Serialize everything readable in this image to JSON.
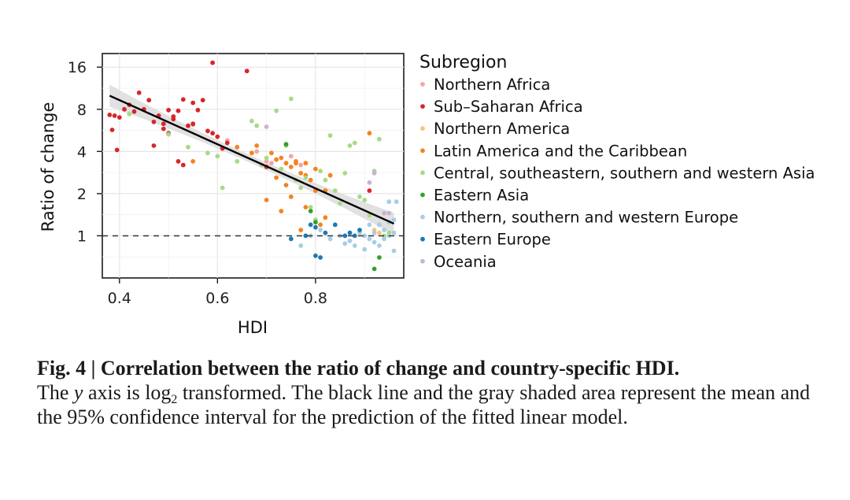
{
  "chart_data": {
    "type": "scatter",
    "xlabel": "HDI",
    "ylabel": "Ratio of change",
    "x_ticks": [
      0.4,
      0.6,
      0.8
    ],
    "y_ticks": [
      1,
      2,
      4,
      8,
      16
    ],
    "x_range": [
      0.365,
      0.98
    ],
    "y_range": [
      0.5,
      20
    ],
    "y_scale": "log2",
    "grid": true,
    "legend_title": "Subregion",
    "legend_position": "right",
    "reference_line": {
      "y": 1,
      "style": "dashed"
    },
    "fit_line": {
      "type": "linear",
      "from": {
        "x": 0.38,
        "y": 10
      },
      "to": {
        "x": 0.96,
        "y": 1.22
      },
      "confidence_band": "95%",
      "band_color": "#dcdcdc",
      "line_color": "#000000"
    },
    "series": [
      {
        "name": "Northern Africa",
        "color": "#f4a3a8",
        "points": [
          [
            0.55,
            6.2
          ],
          [
            0.62,
            4.8
          ],
          [
            0.68,
            4.0
          ],
          [
            0.7,
            3.4
          ],
          [
            0.71,
            3.3
          ],
          [
            0.73,
            3.0
          ],
          [
            0.75,
            3.7
          ],
          [
            0.77,
            3.2
          ]
        ]
      },
      {
        "name": "Sub–Saharan Africa",
        "color": "#d7262b",
        "points": [
          [
            0.38,
            7.3
          ],
          [
            0.385,
            5.7
          ],
          [
            0.39,
            7.2
          ],
          [
            0.395,
            4.1
          ],
          [
            0.4,
            7.0
          ],
          [
            0.41,
            8.0
          ],
          [
            0.42,
            8.6
          ],
          [
            0.43,
            7.7
          ],
          [
            0.44,
            10.5
          ],
          [
            0.45,
            8.0
          ],
          [
            0.46,
            9.3
          ],
          [
            0.47,
            6.5
          ],
          [
            0.47,
            4.4
          ],
          [
            0.48,
            7.2
          ],
          [
            0.49,
            6.3
          ],
          [
            0.49,
            5.8
          ],
          [
            0.5,
            7.9
          ],
          [
            0.5,
            5.4
          ],
          [
            0.51,
            7.1
          ],
          [
            0.51,
            6.8
          ],
          [
            0.52,
            7.8
          ],
          [
            0.52,
            3.4
          ],
          [
            0.53,
            9.4
          ],
          [
            0.53,
            3.2
          ],
          [
            0.54,
            6.1
          ],
          [
            0.55,
            6.3
          ],
          [
            0.55,
            8.9
          ],
          [
            0.56,
            7.9
          ],
          [
            0.57,
            9.3
          ],
          [
            0.58,
            5.6
          ],
          [
            0.59,
            5.4
          ],
          [
            0.59,
            17.2
          ],
          [
            0.6,
            5.1
          ],
          [
            0.61,
            4.2
          ],
          [
            0.62,
            4.6
          ],
          [
            0.66,
            15.0
          ],
          [
            0.7,
            3.1
          ],
          [
            0.91,
            2.1
          ]
        ]
      },
      {
        "name": "Northern America",
        "color": "#fdc27b",
        "points": [
          [
            0.92,
            1.1
          ],
          [
            0.93,
            1.05
          ]
        ]
      },
      {
        "name": "Latin America and the Caribbean",
        "color": "#f6821f",
        "points": [
          [
            0.55,
            3.4
          ],
          [
            0.64,
            4.3
          ],
          [
            0.67,
            3.9
          ],
          [
            0.68,
            4.4
          ],
          [
            0.7,
            1.8
          ],
          [
            0.71,
            3.9
          ],
          [
            0.72,
            3.5
          ],
          [
            0.72,
            2.6
          ],
          [
            0.73,
            1.5
          ],
          [
            0.73,
            3.6
          ],
          [
            0.74,
            3.3
          ],
          [
            0.74,
            2.3
          ],
          [
            0.75,
            3.1
          ],
          [
            0.75,
            1.9
          ],
          [
            0.76,
            3.4
          ],
          [
            0.76,
            3.3
          ],
          [
            0.77,
            2.8
          ],
          [
            0.77,
            1.1
          ],
          [
            0.78,
            2.7
          ],
          [
            0.78,
            3.3
          ],
          [
            0.78,
            1.6
          ],
          [
            0.79,
            2.5
          ],
          [
            0.8,
            3.0
          ],
          [
            0.8,
            2.1
          ],
          [
            0.81,
            1.2
          ],
          [
            0.82,
            2.1
          ],
          [
            0.82,
            1.35
          ],
          [
            0.83,
            2.7
          ],
          [
            0.91,
            5.4
          ]
        ]
      },
      {
        "name": "Central, southeastern, southern and western Asia",
        "color": "#a9d985",
        "points": [
          [
            0.42,
            7.4
          ],
          [
            0.5,
            5.3
          ],
          [
            0.54,
            4.3
          ],
          [
            0.58,
            3.9
          ],
          [
            0.6,
            3.7
          ],
          [
            0.61,
            2.2
          ],
          [
            0.64,
            3.4
          ],
          [
            0.67,
            6.6
          ],
          [
            0.68,
            6.1
          ],
          [
            0.69,
            3.2
          ],
          [
            0.7,
            3.6
          ],
          [
            0.72,
            7.8
          ],
          [
            0.73,
            3.0
          ],
          [
            0.74,
            4.4
          ],
          [
            0.75,
            9.5
          ],
          [
            0.76,
            2.5
          ],
          [
            0.77,
            2.2
          ],
          [
            0.78,
            2.6
          ],
          [
            0.79,
            1.6
          ],
          [
            0.8,
            1.3
          ],
          [
            0.81,
            2.9
          ],
          [
            0.82,
            2.5
          ],
          [
            0.83,
            5.2
          ],
          [
            0.84,
            2.1
          ],
          [
            0.85,
            1.7
          ],
          [
            0.86,
            2.8
          ],
          [
            0.87,
            4.4
          ],
          [
            0.88,
            4.6
          ],
          [
            0.89,
            1.9
          ],
          [
            0.9,
            1.8
          ],
          [
            0.91,
            1.4
          ],
          [
            0.92,
            2.9
          ],
          [
            0.93,
            4.9
          ],
          [
            0.94,
            1.0
          ],
          [
            0.95,
            1.05
          ]
        ]
      },
      {
        "name": "Eastern Asia",
        "color": "#33a02c",
        "points": [
          [
            0.74,
            4.5
          ],
          [
            0.79,
            1.5
          ],
          [
            0.8,
            1.25
          ],
          [
            0.92,
            0.58
          ],
          [
            0.93,
            0.7
          ]
        ]
      },
      {
        "name": "Northern, southern and western Europe",
        "color": "#a6cee3",
        "points": [
          [
            0.77,
            0.85
          ],
          [
            0.79,
            1.0
          ],
          [
            0.81,
            1.1
          ],
          [
            0.83,
            0.95
          ],
          [
            0.85,
            1.0
          ],
          [
            0.86,
            0.88
          ],
          [
            0.87,
            0.92
          ],
          [
            0.88,
            0.85
          ],
          [
            0.89,
            1.05
          ],
          [
            0.9,
            1.0
          ],
          [
            0.9,
            0.8
          ],
          [
            0.91,
            0.95
          ],
          [
            0.91,
            1.2
          ],
          [
            0.92,
            1.05
          ],
          [
            0.92,
            0.9
          ],
          [
            0.93,
            0.85
          ],
          [
            0.93,
            1.2
          ],
          [
            0.94,
            1.1
          ],
          [
            0.94,
            0.95
          ],
          [
            0.95,
            1.0
          ],
          [
            0.95,
            1.25
          ],
          [
            0.95,
            1.75
          ],
          [
            0.96,
            1.05
          ],
          [
            0.96,
            0.78
          ],
          [
            0.96,
            1.3
          ],
          [
            0.965,
            1.75
          ]
        ]
      },
      {
        "name": "Eastern Europe",
        "color": "#1f78b4",
        "points": [
          [
            0.75,
            0.95
          ],
          [
            0.78,
            1.0
          ],
          [
            0.79,
            1.2
          ],
          [
            0.8,
            0.72
          ],
          [
            0.8,
            1.15
          ],
          [
            0.81,
            0.7
          ],
          [
            0.82,
            1.05
          ],
          [
            0.84,
            1.2
          ],
          [
            0.86,
            1.0
          ],
          [
            0.87,
            1.05
          ],
          [
            0.88,
            1.0
          ],
          [
            0.89,
            1.1
          ]
        ]
      },
      {
        "name": "Oceania",
        "color": "#cab2d6",
        "points": [
          [
            0.7,
            6.0
          ],
          [
            0.91,
            2.4
          ],
          [
            0.92,
            2.8
          ],
          [
            0.94,
            1.45
          ],
          [
            0.95,
            1.45
          ]
        ]
      }
    ]
  },
  "caption": {
    "label": "Fig. 4 | Correlation between the ratio of change and country-specific HDI.",
    "text_1": "The ",
    "y_italic": "y",
    "text_2": " axis is log",
    "log_base": "2",
    "text_3": " transformed. The black line and the gray shaded area represent the mean and the 95% confidence interval for the prediction of the fitted linear model."
  }
}
